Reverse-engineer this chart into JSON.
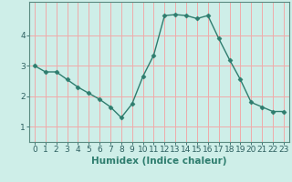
{
  "x": [
    0,
    1,
    2,
    3,
    4,
    5,
    6,
    7,
    8,
    9,
    10,
    11,
    12,
    13,
    14,
    15,
    16,
    17,
    18,
    19,
    20,
    21,
    22,
    23
  ],
  "y": [
    3.0,
    2.8,
    2.8,
    2.55,
    2.3,
    2.1,
    1.9,
    1.65,
    1.3,
    1.75,
    2.65,
    3.35,
    4.65,
    4.68,
    4.65,
    4.55,
    4.65,
    3.9,
    3.2,
    2.55,
    1.8,
    1.65,
    1.5,
    1.5
  ],
  "xlabel": "Humidex (Indice chaleur)",
  "line_color": "#2e7d6e",
  "marker": "D",
  "marker_size": 2.5,
  "bg_color": "#ceeee8",
  "grid_color": "#f0aaaa",
  "xlim": [
    -0.5,
    23.5
  ],
  "ylim": [
    0.5,
    5.1
  ],
  "yticks": [
    1,
    2,
    3,
    4
  ],
  "xticks": [
    0,
    1,
    2,
    3,
    4,
    5,
    6,
    7,
    8,
    9,
    10,
    11,
    12,
    13,
    14,
    15,
    16,
    17,
    18,
    19,
    20,
    21,
    22,
    23
  ],
  "tick_fontsize": 6.5,
  "label_fontsize": 7.5
}
